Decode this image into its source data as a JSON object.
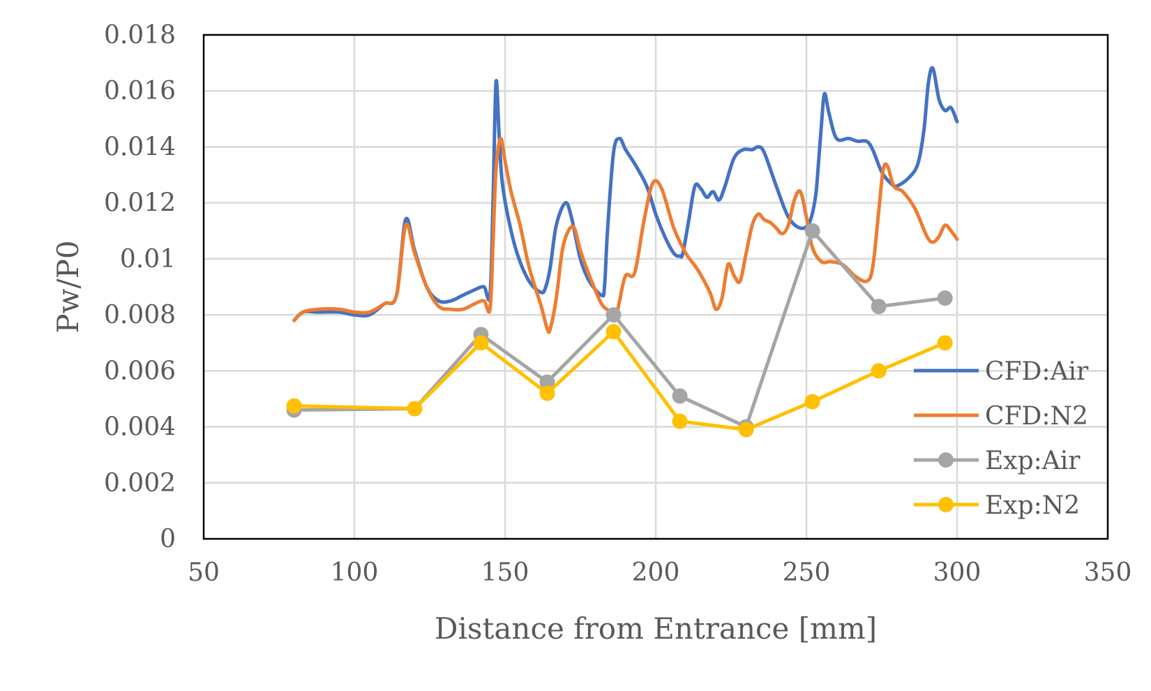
{
  "chart_data": {
    "type": "line",
    "title": "",
    "xlabel": "Distance from Entrance [mm]",
    "ylabel": "Pw/P0",
    "xlim": [
      50,
      350
    ],
    "ylim": [
      0,
      0.018
    ],
    "x_ticks": [
      50,
      100,
      150,
      200,
      250,
      300,
      350
    ],
    "x_tick_labels": [
      "50",
      "100",
      "150",
      "200",
      "250",
      "300",
      "350"
    ],
    "y_ticks": [
      0,
      0.002,
      0.004,
      0.006,
      0.008,
      0.01,
      0.012,
      0.014,
      0.016,
      0.018
    ],
    "y_tick_labels": [
      "0",
      "0.002",
      "0.004",
      "0.006",
      "0.008",
      "0.01",
      "0.012",
      "0.014",
      "0.016",
      "0.018"
    ],
    "grid": true,
    "legend_position": "right",
    "series": [
      {
        "name": "CFD:Air",
        "color": "#4472c4",
        "marker": false,
        "x": [
          80,
          83,
          88,
          95,
          100,
          105,
          110,
          114,
          117,
          120,
          124,
          128,
          132,
          136,
          140,
          143,
          145,
          146,
          147,
          148,
          149,
          151,
          154,
          158,
          162,
          163.5,
          165,
          167,
          170,
          172,
          175,
          178,
          182,
          183,
          184,
          186,
          188,
          190,
          193,
          197,
          200,
          203,
          206,
          208,
          209,
          211,
          213,
          215,
          217,
          219,
          221,
          223,
          226,
          229,
          232,
          234,
          236,
          240,
          244,
          248,
          251,
          253,
          254,
          255,
          256,
          257.5,
          260,
          264,
          267,
          270,
          272,
          275,
          278,
          280,
          284,
          287,
          289,
          290.5,
          292,
          294,
          296,
          298,
          300
        ],
        "y": [
          0.0078,
          0.0081,
          0.0081,
          0.0081,
          0.008,
          0.008,
          0.0084,
          0.0087,
          0.0114,
          0.0103,
          0.009,
          0.0085,
          0.0085,
          0.0087,
          0.0089,
          0.009,
          0.0087,
          0.012,
          0.0163,
          0.0145,
          0.0128,
          0.0115,
          0.0102,
          0.0092,
          0.0088,
          0.009,
          0.0097,
          0.0112,
          0.012,
          0.0115,
          0.01,
          0.0092,
          0.0087,
          0.009,
          0.011,
          0.0138,
          0.0143,
          0.0139,
          0.0134,
          0.0126,
          0.0116,
          0.0108,
          0.0102,
          0.0101,
          0.0102,
          0.0114,
          0.0126,
          0.0125,
          0.0122,
          0.0124,
          0.0121,
          0.0126,
          0.0136,
          0.0139,
          0.0139,
          0.014,
          0.0138,
          0.0126,
          0.0115,
          0.0111,
          0.0113,
          0.0122,
          0.0134,
          0.0148,
          0.0159,
          0.0152,
          0.0143,
          0.0143,
          0.0142,
          0.0142,
          0.0139,
          0.0131,
          0.0127,
          0.0126,
          0.0129,
          0.0134,
          0.0146,
          0.0163,
          0.0168,
          0.0157,
          0.0153,
          0.0154,
          0.0149
        ]
      },
      {
        "name": "CFD:N2",
        "color": "#ed7d31",
        "marker": false,
        "x": [
          80,
          83,
          88,
          95,
          100,
          105,
          110,
          114,
          117,
          120,
          124,
          128,
          132,
          136,
          140,
          143,
          145,
          146,
          147,
          148.5,
          150,
          152,
          155,
          158,
          162,
          164,
          165,
          167,
          169,
          171,
          173,
          175,
          178,
          182,
          185,
          186.5,
          188,
          190,
          193,
          196,
          199,
          202,
          206,
          210,
          214,
          218,
          220,
          222,
          224,
          226,
          228,
          230,
          232,
          234,
          236,
          238,
          240,
          242,
          244,
          246,
          248,
          250,
          252,
          255,
          258,
          262,
          266,
          270,
          272,
          274,
          275.5,
          277,
          279,
          282,
          286,
          290,
          292,
          294,
          296,
          298,
          300
        ],
        "y": [
          0.0078,
          0.0081,
          0.0082,
          0.0082,
          0.0081,
          0.0081,
          0.0084,
          0.0087,
          0.0112,
          0.0102,
          0.009,
          0.0083,
          0.0082,
          0.0082,
          0.0084,
          0.0085,
          0.0082,
          0.0105,
          0.0132,
          0.0143,
          0.0135,
          0.0124,
          0.0112,
          0.0097,
          0.0083,
          0.0075,
          0.0075,
          0.0086,
          0.0103,
          0.011,
          0.0111,
          0.0103,
          0.0094,
          0.0084,
          0.0081,
          0.0078,
          0.0085,
          0.0094,
          0.0095,
          0.0113,
          0.0127,
          0.0125,
          0.0111,
          0.0102,
          0.0096,
          0.0088,
          0.0082,
          0.0086,
          0.0098,
          0.0094,
          0.0092,
          0.0102,
          0.0112,
          0.0116,
          0.0114,
          0.0113,
          0.0111,
          0.0109,
          0.0112,
          0.0121,
          0.0124,
          0.0115,
          0.0104,
          0.0099,
          0.0099,
          0.0098,
          0.0094,
          0.0092,
          0.0097,
          0.0117,
          0.0132,
          0.0133,
          0.0126,
          0.0124,
          0.0118,
          0.0108,
          0.0106,
          0.0108,
          0.0112,
          0.011,
          0.0107
        ]
      },
      {
        "name": "Exp:Air",
        "color": "#a5a5a5",
        "marker": true,
        "x": [
          80,
          120,
          142,
          164,
          186,
          208,
          230,
          252,
          274,
          296
        ],
        "y": [
          0.0046,
          0.00465,
          0.0073,
          0.0056,
          0.008,
          0.0051,
          0.004,
          0.011,
          0.0083,
          0.0086
        ]
      },
      {
        "name": "Exp:N2",
        "color": "#ffc000",
        "marker": true,
        "x": [
          80,
          120,
          142,
          164,
          186,
          208,
          230,
          252,
          274,
          296
        ],
        "y": [
          0.00475,
          0.00465,
          0.007,
          0.0052,
          0.0074,
          0.0042,
          0.0039,
          0.0049,
          0.006,
          0.007
        ]
      }
    ]
  }
}
